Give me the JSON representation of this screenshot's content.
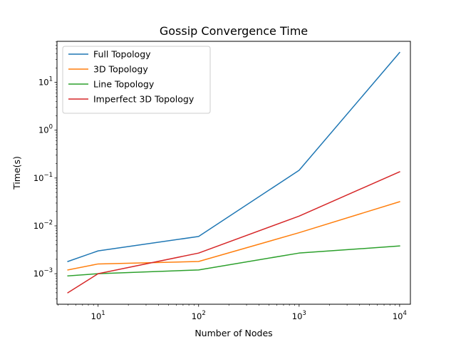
{
  "chart_data": {
    "type": "line",
    "title": "Gossip Convergence Time",
    "xlabel": "Number of Nodes",
    "ylabel": "Time(s)",
    "xscale": "log",
    "yscale": "log",
    "xlim": [
      3.9,
      12800
    ],
    "ylim": [
      0.00023,
      72
    ],
    "x": [
      5,
      10,
      100,
      1000,
      10000
    ],
    "xticks": [
      {
        "value": 10,
        "base": "10",
        "exp": "1"
      },
      {
        "value": 100,
        "base": "10",
        "exp": "2"
      },
      {
        "value": 1000,
        "base": "10",
        "exp": "3"
      },
      {
        "value": 10000,
        "base": "10",
        "exp": "4"
      }
    ],
    "yticks": [
      {
        "value": 0.001,
        "base": "10",
        "exp": "−3"
      },
      {
        "value": 0.01,
        "base": "10",
        "exp": "−2"
      },
      {
        "value": 0.1,
        "base": "10",
        "exp": "−1"
      },
      {
        "value": 1,
        "base": "10",
        "exp": "0"
      },
      {
        "value": 10,
        "base": "10",
        "exp": "1"
      }
    ],
    "legend_position": "top-left",
    "grid": false,
    "series": [
      {
        "name": "Full Topology",
        "color": "#1f77b4",
        "values": [
          0.0018,
          0.003,
          0.006,
          0.145,
          42.0
        ]
      },
      {
        "name": "3D Topology",
        "color": "#ff7f0e",
        "values": [
          0.0012,
          0.0016,
          0.0018,
          0.0072,
          0.032
        ]
      },
      {
        "name": "Line Topology",
        "color": "#2ca02c",
        "values": [
          0.0009,
          0.001,
          0.0012,
          0.0027,
          0.0038
        ]
      },
      {
        "name": "Imperfect 3D Topology",
        "color": "#d62728",
        "values": [
          0.0004,
          0.001,
          0.0027,
          0.016,
          0.135
        ]
      }
    ]
  }
}
